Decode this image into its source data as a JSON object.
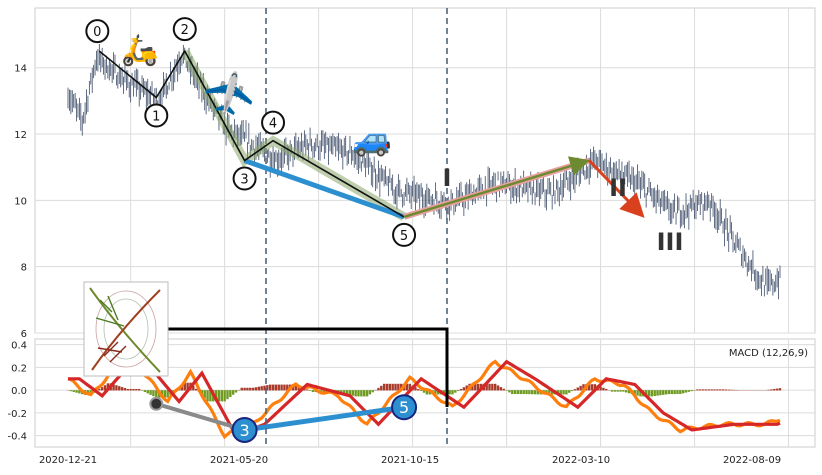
{
  "colors": {
    "panel_bg": "#ffffff",
    "grid": "#dcdcdc",
    "frame": "#cccccc",
    "candle": "#3a4a66",
    "blue_line": "#2b8fd0",
    "black_line": "#111111",
    "green_path": "#8aa86a",
    "red_arrow": "#d9411e",
    "dashed": "#4f6578",
    "macd_line": "#ff7f0e",
    "signal_line": "#d62728",
    "hist_pos": "#a83a2a",
    "hist_neg": "#6e9a20",
    "gray_line": "#8a8a8a"
  },
  "chart_data": [
    {
      "type": "candlestick",
      "ylim": [
        6,
        15.8
      ],
      "yticks": [
        "14",
        "12",
        "10",
        "8",
        "6"
      ],
      "ytick_values": [
        14,
        12,
        10,
        8,
        6
      ],
      "grid": true,
      "price_anchors": [
        {
          "t": 0,
          "v": 13.2
        },
        {
          "t": 5,
          "v": 12.4
        },
        {
          "t": 10,
          "v": 14.3
        },
        {
          "t": 20,
          "v": 13.6
        },
        {
          "t": 32,
          "v": 13.0
        },
        {
          "t": 40,
          "v": 14.4
        },
        {
          "t": 55,
          "v": 12.2
        },
        {
          "t": 73,
          "v": 11.2
        },
        {
          "t": 85,
          "v": 11.7
        },
        {
          "t": 100,
          "v": 11.4
        },
        {
          "t": 115,
          "v": 10.3
        },
        {
          "t": 135,
          "v": 9.9
        },
        {
          "t": 150,
          "v": 10.5
        },
        {
          "t": 170,
          "v": 10.2
        },
        {
          "t": 185,
          "v": 11.2
        },
        {
          "t": 200,
          "v": 10.5
        },
        {
          "t": 213,
          "v": 9.6
        },
        {
          "t": 225,
          "v": 10.0
        },
        {
          "t": 235,
          "v": 8.6
        },
        {
          "t": 245,
          "v": 7.4
        },
        {
          "t": 250,
          "v": 7.6
        }
      ],
      "wave_labels": [
        {
          "label": "0",
          "t": 11,
          "v": 14.5
        },
        {
          "label": "1",
          "t": 31,
          "v": 13.1
        },
        {
          "label": "2",
          "t": 41,
          "v": 14.5
        },
        {
          "label": "3",
          "t": 62,
          "v": 11.2
        },
        {
          "label": "4",
          "t": 72,
          "v": 11.8
        },
        {
          "label": "5",
          "t": 118,
          "v": 9.5
        }
      ],
      "corrective_labels": [
        "I",
        "II",
        "III"
      ],
      "emoji": {
        "scooter": "🛵",
        "plane": "✈️",
        "car": "🚙"
      }
    },
    {
      "type": "line",
      "title": "MACD (12,26,9)",
      "ylim": [
        -0.5,
        0.45
      ],
      "yticks": [
        "0.4",
        "0.2",
        "0.0",
        "-0.2",
        "-0.4"
      ],
      "ytick_values": [
        0.4,
        0.2,
        0.0,
        -0.2,
        -0.4
      ],
      "xticks": [
        "2020-12-21",
        "2021-05-20",
        "2021-10-15",
        "2022-03-10",
        "2022-08-09"
      ],
      "macd_anchors": [
        {
          "t": 0,
          "v": 0.1
        },
        {
          "t": 8,
          "v": -0.05
        },
        {
          "t": 15,
          "v": 0.15
        },
        {
          "t": 25,
          "v": 0.2
        },
        {
          "t": 35,
          "v": -0.1
        },
        {
          "t": 43,
          "v": 0.15
        },
        {
          "t": 55,
          "v": -0.4
        },
        {
          "t": 65,
          "v": -0.3
        },
        {
          "t": 80,
          "v": 0.05
        },
        {
          "t": 95,
          "v": -0.05
        },
        {
          "t": 105,
          "v": -0.3
        },
        {
          "t": 120,
          "v": 0.1
        },
        {
          "t": 135,
          "v": -0.15
        },
        {
          "t": 150,
          "v": 0.25
        },
        {
          "t": 160,
          "v": 0.1
        },
        {
          "t": 175,
          "v": -0.15
        },
        {
          "t": 185,
          "v": 0.1
        },
        {
          "t": 195,
          "v": 0.05
        },
        {
          "t": 205,
          "v": -0.2
        },
        {
          "t": 215,
          "v": -0.35
        },
        {
          "t": 230,
          "v": -0.3
        },
        {
          "t": 245,
          "v": -0.3
        },
        {
          "t": 250,
          "v": -0.25
        }
      ],
      "markers": [
        {
          "label": "3",
          "t": 62,
          "v": -0.35
        },
        {
          "label": "5",
          "t": 118,
          "v": -0.15
        }
      ]
    }
  ]
}
